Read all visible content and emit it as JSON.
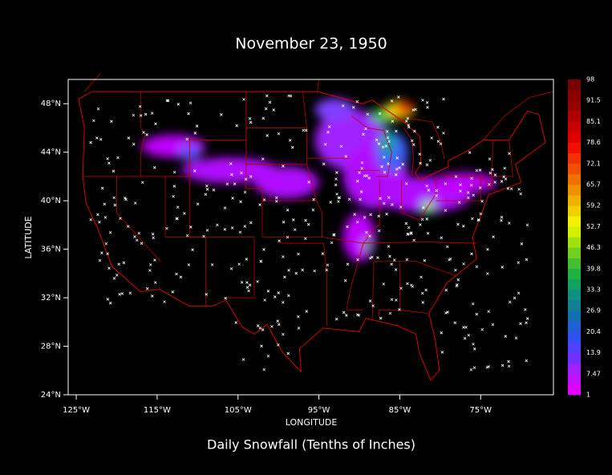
{
  "title": "November 23, 1950",
  "caption": "Daily Snowfall (Tenths of Inches)",
  "map": {
    "xlabel": "LONGITUDE",
    "ylabel": "LATITUDE",
    "xlim": [
      -126,
      -66
    ],
    "ylim": [
      24,
      50
    ],
    "xticks": [
      {
        "value": -125,
        "label": "125°W"
      },
      {
        "value": -115,
        "label": "115°W"
      },
      {
        "value": -105,
        "label": "105°W"
      },
      {
        "value": -95,
        "label": "95°W"
      },
      {
        "value": -85,
        "label": "85°W"
      },
      {
        "value": -75,
        "label": "75°W"
      }
    ],
    "yticks": [
      {
        "value": 24,
        "label": "24°N"
      },
      {
        "value": 28,
        "label": "28°N"
      },
      {
        "value": 32,
        "label": "32°N"
      },
      {
        "value": 36,
        "label": "36°N"
      },
      {
        "value": 40,
        "label": "40°N"
      },
      {
        "value": 44,
        "label": "44°N"
      },
      {
        "value": 48,
        "label": "48°N"
      }
    ],
    "colorbar": [
      1,
      7.47,
      13.9,
      20.4,
      26.9,
      33.3,
      39.8,
      46.3,
      52.7,
      59.2,
      65.7,
      72.1,
      78.6,
      85.1,
      91.5,
      98
    ]
  }
}
